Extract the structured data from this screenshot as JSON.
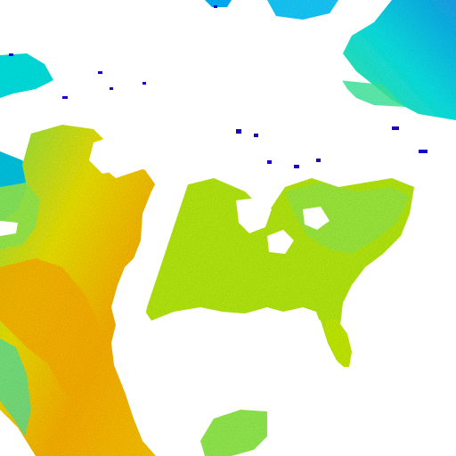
{
  "map": {
    "kind": "satellite land-surface temperature composite",
    "background": "#ffffff",
    "cloud_mask_color": "#ffffff",
    "palette": {
      "coldest": "#0a00c8",
      "very_cold": "#1e3cff",
      "cold": "#00b4ff",
      "cool": "#00e6e6",
      "mild": "#3cf0a0",
      "temperate": "#96f050",
      "warm": "#c8f000",
      "warmer": "#f0e600",
      "hot": "#ffc800",
      "hottest": "#ff9600"
    }
  }
}
